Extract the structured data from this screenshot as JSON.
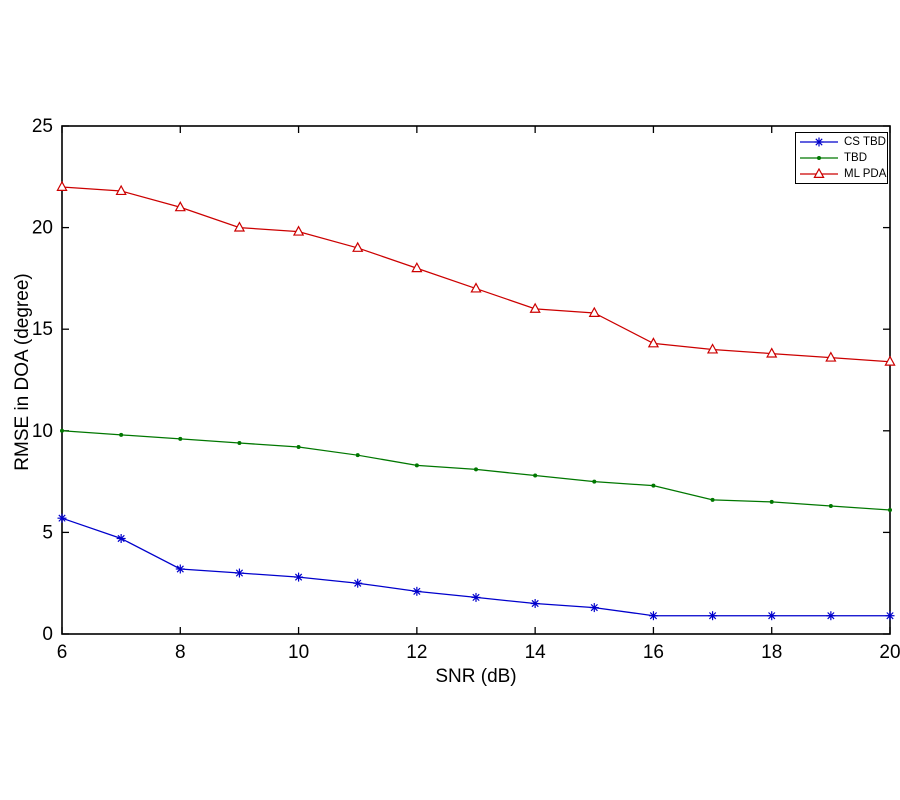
{
  "figure": {
    "background_color": "#ffffff",
    "axis_color": "#000000"
  },
  "chart_data": {
    "type": "line",
    "title": "",
    "xlabel": "SNR (dB)",
    "ylabel": "RMSE in DOA (degree)",
    "xlim": [
      6,
      20
    ],
    "ylim": [
      0,
      25
    ],
    "xticks": [
      6,
      8,
      10,
      12,
      14,
      16,
      18,
      20
    ],
    "yticks": [
      0,
      5,
      10,
      15,
      20,
      25
    ],
    "grid": false,
    "legend_position": "top-right",
    "x": [
      6,
      7,
      8,
      9,
      10,
      11,
      12,
      13,
      14,
      15,
      16,
      17,
      18,
      19,
      20
    ],
    "series": [
      {
        "name": "CS TBD",
        "color": "#0000CC",
        "marker": "asterisk",
        "values": [
          5.7,
          4.7,
          3.2,
          3.0,
          2.8,
          2.5,
          2.1,
          1.8,
          1.5,
          1.3,
          0.9,
          0.9,
          0.9,
          0.9,
          0.9
        ]
      },
      {
        "name": "TBD",
        "color": "#007700",
        "marker": "dot",
        "values": [
          10.0,
          9.8,
          9.6,
          9.4,
          9.2,
          8.8,
          8.3,
          8.1,
          7.8,
          7.5,
          7.3,
          6.6,
          6.5,
          6.3,
          6.1
        ]
      },
      {
        "name": "ML PDA",
        "color": "#CC0000",
        "marker": "triangle",
        "values": [
          22.0,
          21.8,
          21.0,
          20.0,
          19.8,
          19.0,
          18.0,
          17.0,
          16.0,
          15.8,
          14.3,
          14.0,
          13.8,
          13.6,
          13.4
        ]
      }
    ]
  }
}
